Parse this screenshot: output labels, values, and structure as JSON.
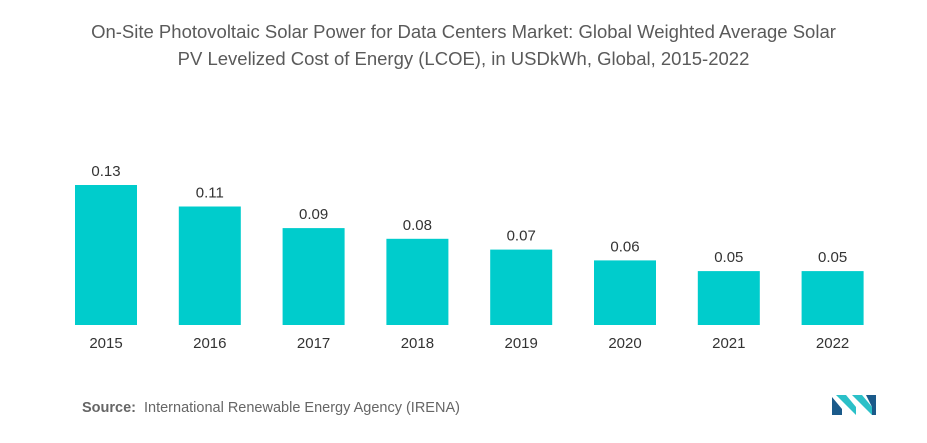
{
  "title_lines": [
    "On-Site Photovoltaic Solar Power for Data Centers Market: Global Weighted Average Solar",
    "PV Levelized Cost of Energy (LCOE), in USDkWh, Global, 2015-2022"
  ],
  "source": {
    "label": "Source:",
    "text": "International Renewable Energy Agency (IRENA)"
  },
  "logo": {
    "name": "mordor-intelligence-logo",
    "colors": [
      "#1a5a8a",
      "#2bc0c8"
    ]
  },
  "colors": {
    "bar": "#00cccc",
    "text": "#333333"
  },
  "chart_data": {
    "type": "bar",
    "title": "On-Site Photovoltaic Solar Power for Data Centers Market: Global Weighted Average Solar PV Levelized Cost of Energy (LCOE), in USDkWh, Global, 2015-2022",
    "xlabel": "",
    "ylabel": "",
    "categories": [
      "2015",
      "2016",
      "2017",
      "2018",
      "2019",
      "2020",
      "2021",
      "2022"
    ],
    "values": [
      0.13,
      0.11,
      0.09,
      0.08,
      0.07,
      0.06,
      0.05,
      0.05
    ],
    "data_labels": [
      "0.13",
      "0.11",
      "0.09",
      "0.08",
      "0.07",
      "0.06",
      "0.05",
      "0.05"
    ],
    "grid": false,
    "legend": "none"
  }
}
